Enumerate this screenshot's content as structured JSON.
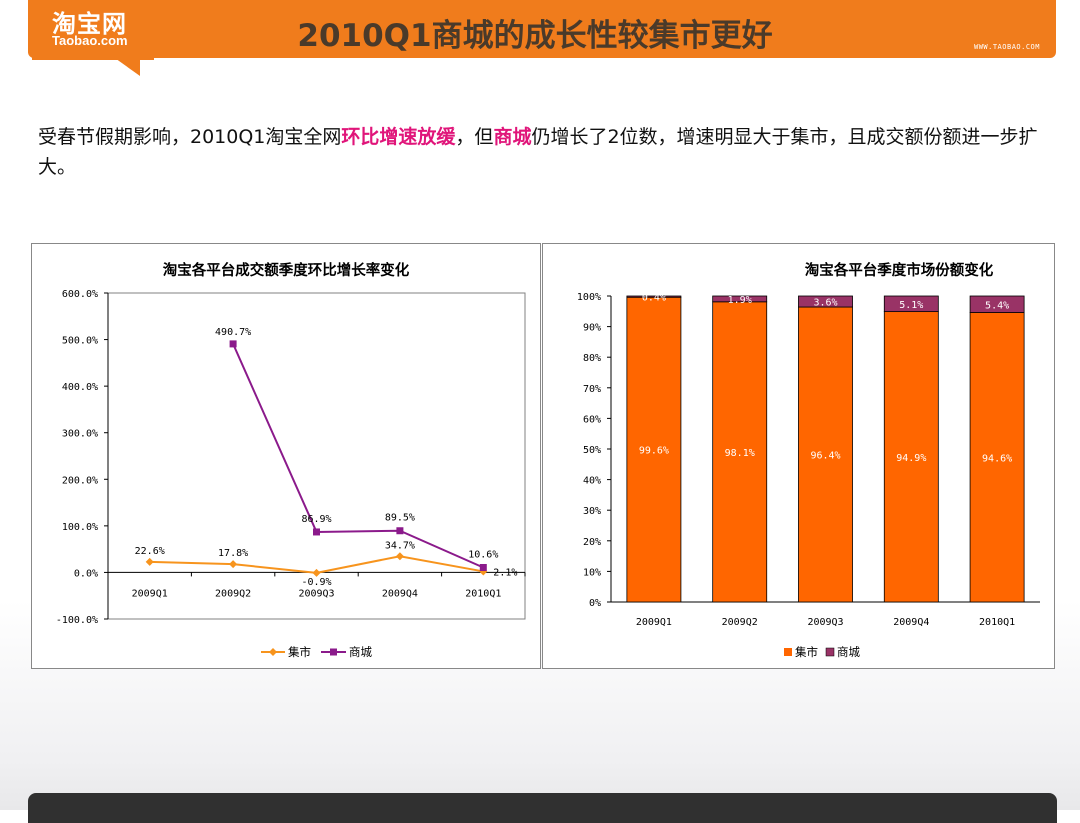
{
  "header": {
    "logo_cn": "淘宝网",
    "logo_en": "Taobao.com",
    "title": "2010Q1商城的成长性较集市更好",
    "site_url": "WWW.TAOBAO.COM"
  },
  "intro": {
    "part1": "受春节假期影响，2010Q1淘宝全网",
    "hl1": "环比增速放缓",
    "part2": "，但",
    "hl2": "商城",
    "part3": "仍增长了2位数，增速明显大于集市，且成交额份额进一步扩大。"
  },
  "colors": {
    "header_orange": "#f07c1c",
    "highlight": "#e0157a",
    "jishi": "#f7941d",
    "shangcheng": "#8b1a8b",
    "bar_orange": "#ff6600",
    "bar_purple": "#993366"
  },
  "chart_data": [
    {
      "type": "line",
      "title": "淘宝各平台成交额季度环比增长率变化",
      "categories": [
        "2009Q1",
        "2009Q2",
        "2009Q3",
        "2009Q4",
        "2010Q1"
      ],
      "ylim": [
        -100,
        600
      ],
      "yticks": [
        -100,
        0,
        100,
        200,
        300,
        400,
        500,
        600
      ],
      "ytick_labels": [
        "-100.0%",
        "0.0%",
        "100.0%",
        "200.0%",
        "300.0%",
        "400.0%",
        "500.0%",
        "600.0%"
      ],
      "legend_position": "bottom",
      "series": [
        {
          "name": "集市",
          "values": [
            22.6,
            17.8,
            -0.9,
            34.7,
            2.1
          ],
          "labels": [
            "22.6%",
            "17.8%",
            "-0.9%",
            "34.7%",
            "2.1%"
          ]
        },
        {
          "name": "商城",
          "values": [
            null,
            490.7,
            86.9,
            89.5,
            10.6
          ],
          "labels": [
            "",
            "490.7%",
            "86.9%",
            "89.5%",
            "10.6%"
          ]
        }
      ]
    },
    {
      "type": "bar",
      "stacked": true,
      "title": "淘宝各平台季度市场份额变化",
      "categories": [
        "2009Q1",
        "2009Q2",
        "2009Q3",
        "2009Q4",
        "2010Q1"
      ],
      "ylim": [
        0,
        100
      ],
      "yticks": [
        0,
        10,
        20,
        30,
        40,
        50,
        60,
        70,
        80,
        90,
        100
      ],
      "ytick_labels": [
        "0%",
        "10%",
        "20%",
        "30%",
        "40%",
        "50%",
        "60%",
        "70%",
        "80%",
        "90%",
        "100%"
      ],
      "legend_position": "bottom",
      "series": [
        {
          "name": "集市",
          "values": [
            99.6,
            98.1,
            96.4,
            94.9,
            94.6
          ],
          "labels": [
            "99.6%",
            "98.1%",
            "96.4%",
            "94.9%",
            "94.6%"
          ]
        },
        {
          "name": "商城",
          "values": [
            0.4,
            1.9,
            3.6,
            5.1,
            5.4
          ],
          "labels": [
            "0.4%",
            "1.9%",
            "3.6%",
            "5.1%",
            "5.4%"
          ]
        }
      ]
    }
  ]
}
